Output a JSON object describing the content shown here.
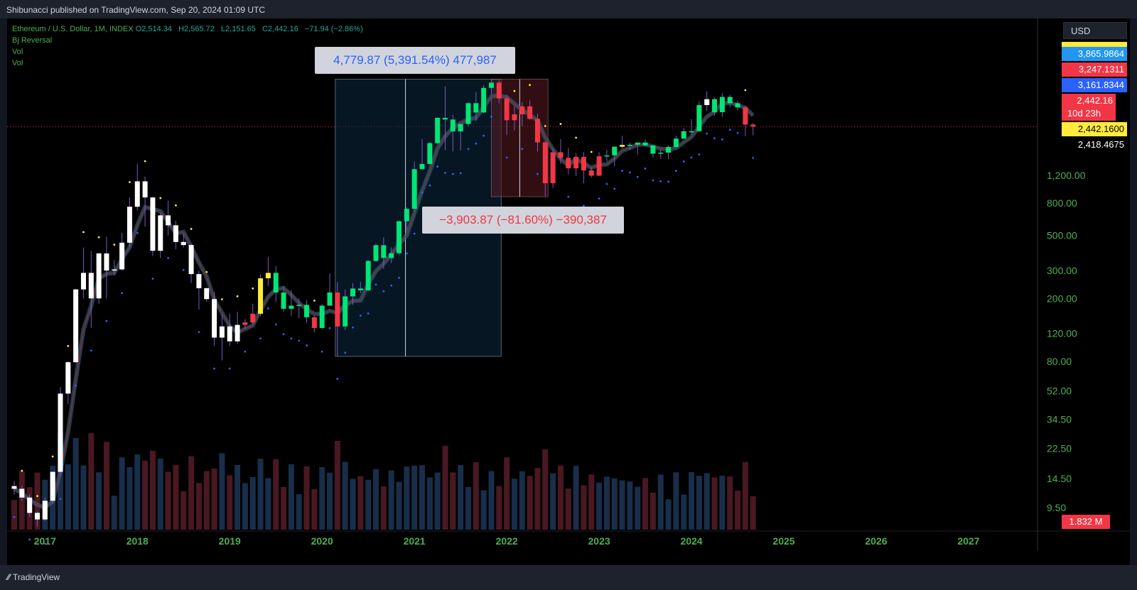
{
  "header": {
    "published": "Shibunacci published on TradingView.com, Sep 20, 2024 01:09 UTC"
  },
  "legend": {
    "symbol": "Ethereum / U.S. Dollar, 1M, INDEX",
    "open_key": "O",
    "open": "2,514.34",
    "high_key": "H",
    "high": "2,565.72",
    "low_key": "L",
    "low": "2,151.65",
    "close_key": "C",
    "close": "2,442.16",
    "change": "−71.94 (−2.86%)",
    "indicators": [
      "Bj Reversal",
      "Vol",
      "Vol"
    ]
  },
  "currency": "USD",
  "price_tags": [
    {
      "label": "3,865.9864",
      "bg": "#2196f3",
      "fg": "#ffffff"
    },
    {
      "label": "3,247.1311",
      "bg": "#f23645",
      "fg": "#ffffff"
    },
    {
      "label": "3,161.8344",
      "bg": "#2962ff",
      "fg": "#ffffff"
    },
    {
      "label": "2,442.16",
      "sub": "10d 23h",
      "bg": "#f23645",
      "fg": "#ffffff"
    },
    {
      "label": "2,442.1600",
      "bg": "#ffeb3b",
      "fg": "#000000"
    },
    {
      "label": "2,418.4675",
      "bg": "#000000",
      "fg": "#ffffff"
    }
  ],
  "volume_tag": {
    "label": "1.832 M",
    "bg": "#f23645",
    "fg": "#ffffff"
  },
  "measurements": [
    {
      "label": "4,779.87 (5,391.54%) 477,987",
      "color": "#2962ff"
    },
    {
      "label": "−3,903.87 (−81.60%) −390,387",
      "color": "#f23645"
    }
  ],
  "colors": {
    "up": "#00e676",
    "down": "#f23645",
    "white": "#ffffff",
    "yellow": "#ffeb3b",
    "accent_green": "#4caf50",
    "band": "#1f6f8b"
  },
  "footer": {
    "brand": "TradingView"
  },
  "chart_data": {
    "type": "candlestick",
    "scale": "log",
    "y_axis_ticks": [
      "1,200.00",
      "800.00",
      "500.00",
      "300.00",
      "200.00",
      "120.00",
      "80.00",
      "52.00",
      "34.50",
      "22.50",
      "14.50",
      "9.50"
    ],
    "y_axis_values": [
      1200,
      800,
      500,
      300,
      200,
      120,
      80,
      52,
      34.5,
      22.5,
      14.5,
      9.5
    ],
    "x_axis_ticks": [
      "2017",
      "2018",
      "2019",
      "2020",
      "2021",
      "2022",
      "2023",
      "2024",
      "2025",
      "2026",
      "2027"
    ],
    "x_axis_range": [
      "2016-09",
      "2027-06"
    ],
    "series": [
      {
        "x": "2016-09",
        "o": 13,
        "h": 14,
        "l": 11.5,
        "c": 12.5,
        "col": "white"
      },
      {
        "x": "2016-10",
        "o": 12.5,
        "h": 13,
        "l": 10.5,
        "c": 11,
        "col": "white"
      },
      {
        "x": "2016-11",
        "o": 11,
        "h": 11.5,
        "l": 8.3,
        "c": 8.8,
        "col": "white"
      },
      {
        "x": "2016-12",
        "o": 8.8,
        "h": 9,
        "l": 7.2,
        "c": 8,
        "col": "white"
      },
      {
        "x": "2017-01",
        "o": 8,
        "h": 11,
        "l": 7.8,
        "c": 10.5,
        "col": "white"
      },
      {
        "x": "2017-02",
        "o": 10.5,
        "h": 16,
        "l": 10,
        "c": 16,
        "col": "white"
      },
      {
        "x": "2017-03",
        "o": 16,
        "h": 55,
        "l": 15,
        "c": 50,
        "col": "white"
      },
      {
        "x": "2017-04",
        "o": 50,
        "h": 80,
        "l": 43,
        "c": 79,
        "col": "white"
      },
      {
        "x": "2017-05",
        "o": 79,
        "h": 230,
        "l": 78,
        "c": 228,
        "col": "white"
      },
      {
        "x": "2017-06",
        "o": 228,
        "h": 420,
        "l": 200,
        "c": 290,
        "col": "white"
      },
      {
        "x": "2017-07",
        "o": 290,
        "h": 400,
        "l": 130,
        "c": 200,
        "col": "white"
      },
      {
        "x": "2017-08",
        "o": 200,
        "h": 390,
        "l": 185,
        "c": 385,
        "col": "white"
      },
      {
        "x": "2017-09",
        "o": 385,
        "h": 490,
        "l": 200,
        "c": 300,
        "col": "white"
      },
      {
        "x": "2017-10",
        "o": 300,
        "h": 350,
        "l": 280,
        "c": 305,
        "col": "white"
      },
      {
        "x": "2017-11",
        "o": 305,
        "h": 520,
        "l": 300,
        "c": 450,
        "col": "white"
      },
      {
        "x": "2017-12",
        "o": 450,
        "h": 870,
        "l": 420,
        "c": 760,
        "col": "white"
      },
      {
        "x": "2018-01",
        "o": 760,
        "h": 1420,
        "l": 720,
        "c": 1100,
        "col": "white"
      },
      {
        "x": "2018-02",
        "o": 1100,
        "h": 1180,
        "l": 570,
        "c": 870,
        "col": "white"
      },
      {
        "x": "2018-03",
        "o": 870,
        "h": 880,
        "l": 370,
        "c": 400,
        "col": "white"
      },
      {
        "x": "2018-04",
        "o": 400,
        "h": 690,
        "l": 360,
        "c": 670,
        "col": "white"
      },
      {
        "x": "2018-05",
        "o": 670,
        "h": 830,
        "l": 500,
        "c": 580,
        "col": "white"
      },
      {
        "x": "2018-06",
        "o": 580,
        "h": 620,
        "l": 410,
        "c": 455,
        "col": "white"
      },
      {
        "x": "2018-07",
        "o": 455,
        "h": 515,
        "l": 420,
        "c": 435,
        "col": "white"
      },
      {
        "x": "2018-08",
        "o": 435,
        "h": 440,
        "l": 250,
        "c": 285,
        "col": "white"
      },
      {
        "x": "2018-09",
        "o": 285,
        "h": 300,
        "l": 170,
        "c": 232,
        "col": "white"
      },
      {
        "x": "2018-10",
        "o": 232,
        "h": 235,
        "l": 190,
        "c": 198,
        "col": "white"
      },
      {
        "x": "2018-11",
        "o": 198,
        "h": 220,
        "l": 100,
        "c": 113,
        "col": "white"
      },
      {
        "x": "2018-12",
        "o": 113,
        "h": 158,
        "l": 81,
        "c": 133,
        "col": "white"
      },
      {
        "x": "2019-01",
        "o": 133,
        "h": 160,
        "l": 100,
        "c": 107,
        "col": "white"
      },
      {
        "x": "2019-02",
        "o": 107,
        "h": 165,
        "l": 103,
        "c": 136,
        "col": "white"
      },
      {
        "x": "2019-03",
        "o": 136,
        "h": 148,
        "l": 128,
        "c": 141,
        "col": "red"
      },
      {
        "x": "2019-04",
        "o": 141,
        "h": 185,
        "l": 137,
        "c": 160,
        "col": "red"
      },
      {
        "x": "2019-05",
        "o": 160,
        "h": 285,
        "l": 155,
        "c": 268,
        "col": "yellow"
      },
      {
        "x": "2019-06",
        "o": 268,
        "h": 365,
        "l": 240,
        "c": 290,
        "col": "yellow"
      },
      {
        "x": "2019-07",
        "o": 290,
        "h": 320,
        "l": 190,
        "c": 218,
        "col": "green"
      },
      {
        "x": "2019-08",
        "o": 218,
        "h": 240,
        "l": 165,
        "c": 172,
        "col": "green"
      },
      {
        "x": "2019-09",
        "o": 172,
        "h": 225,
        "l": 155,
        "c": 180,
        "col": "green"
      },
      {
        "x": "2019-10",
        "o": 180,
        "h": 200,
        "l": 150,
        "c": 182,
        "col": "green"
      },
      {
        "x": "2019-11",
        "o": 182,
        "h": 195,
        "l": 140,
        "c": 152,
        "col": "green"
      },
      {
        "x": "2019-12",
        "o": 152,
        "h": 155,
        "l": 122,
        "c": 130,
        "col": "red"
      },
      {
        "x": "2020-01",
        "o": 130,
        "h": 185,
        "l": 128,
        "c": 180,
        "col": "green"
      },
      {
        "x": "2020-02",
        "o": 180,
        "h": 288,
        "l": 180,
        "c": 218,
        "col": "green"
      },
      {
        "x": "2020-03",
        "o": 218,
        "h": 253,
        "l": 86,
        "c": 133,
        "col": "red"
      },
      {
        "x": "2020-04",
        "o": 133,
        "h": 228,
        "l": 126,
        "c": 206,
        "col": "green"
      },
      {
        "x": "2020-05",
        "o": 206,
        "h": 250,
        "l": 182,
        "c": 231,
        "col": "green"
      },
      {
        "x": "2020-06",
        "o": 231,
        "h": 254,
        "l": 216,
        "c": 225,
        "col": "green"
      },
      {
        "x": "2020-07",
        "o": 225,
        "h": 349,
        "l": 223,
        "c": 345,
        "col": "green"
      },
      {
        "x": "2020-08",
        "o": 345,
        "h": 445,
        "l": 340,
        "c": 434,
        "col": "green"
      },
      {
        "x": "2020-09",
        "o": 434,
        "h": 488,
        "l": 308,
        "c": 360,
        "col": "green"
      },
      {
        "x": "2020-10",
        "o": 360,
        "h": 420,
        "l": 335,
        "c": 386,
        "col": "green"
      },
      {
        "x": "2020-11",
        "o": 386,
        "h": 622,
        "l": 375,
        "c": 615,
        "col": "green"
      },
      {
        "x": "2020-12",
        "o": 615,
        "h": 755,
        "l": 535,
        "c": 737,
        "col": "green"
      },
      {
        "x": "2021-01",
        "o": 737,
        "h": 1470,
        "l": 714,
        "c": 1314,
        "col": "green"
      },
      {
        "x": "2021-02",
        "o": 1314,
        "h": 2040,
        "l": 1300,
        "c": 1416,
        "col": "green"
      },
      {
        "x": "2021-03",
        "o": 1416,
        "h": 1943,
        "l": 1440,
        "c": 1919,
        "col": "green"
      },
      {
        "x": "2021-04",
        "o": 1919,
        "h": 2797,
        "l": 1895,
        "c": 2773,
        "col": "green"
      },
      {
        "x": "2021-05",
        "o": 2773,
        "h": 4380,
        "l": 1730,
        "c": 2707,
        "col": "green"
      },
      {
        "x": "2021-06",
        "o": 2707,
        "h": 2890,
        "l": 1700,
        "c": 2275,
        "col": "green"
      },
      {
        "x": "2021-07",
        "o": 2275,
        "h": 2550,
        "l": 1720,
        "c": 2534,
        "col": "green"
      },
      {
        "x": "2021-08",
        "o": 2534,
        "h": 3470,
        "l": 2450,
        "c": 3433,
        "col": "green"
      },
      {
        "x": "2021-09",
        "o": 3433,
        "h": 4030,
        "l": 2650,
        "c": 3000,
        "col": "green"
      },
      {
        "x": "2021-10",
        "o": 3000,
        "h": 4460,
        "l": 2970,
        "c": 4290,
        "col": "green"
      },
      {
        "x": "2021-11",
        "o": 4290,
        "h": 4870,
        "l": 3920,
        "c": 4630,
        "col": "green"
      },
      {
        "x": "2021-12",
        "o": 4630,
        "h": 4780,
        "l": 3420,
        "c": 3680,
        "col": "red"
      },
      {
        "x": "2022-01",
        "o": 3680,
        "h": 3880,
        "l": 2160,
        "c": 2680,
        "col": "red"
      },
      {
        "x": "2022-02",
        "o": 2680,
        "h": 3280,
        "l": 2310,
        "c": 2920,
        "col": "red"
      },
      {
        "x": "2022-03",
        "o": 2920,
        "h": 3480,
        "l": 2450,
        "c": 3280,
        "col": "red"
      },
      {
        "x": "2022-04",
        "o": 3280,
        "h": 3580,
        "l": 2700,
        "c": 2730,
        "col": "red"
      },
      {
        "x": "2022-05",
        "o": 2730,
        "h": 2950,
        "l": 1700,
        "c": 1940,
        "col": "red"
      },
      {
        "x": "2022-06",
        "o": 1940,
        "h": 1970,
        "l": 880,
        "c": 1070,
        "col": "red"
      },
      {
        "x": "2022-07",
        "o": 1070,
        "h": 1780,
        "l": 1000,
        "c": 1680,
        "col": "red"
      },
      {
        "x": "2022-08",
        "o": 1680,
        "h": 2030,
        "l": 1420,
        "c": 1550,
        "col": "red"
      },
      {
        "x": "2022-09",
        "o": 1550,
        "h": 1790,
        "l": 1220,
        "c": 1330,
        "col": "red"
      },
      {
        "x": "2022-10",
        "o": 1330,
        "h": 1660,
        "l": 1190,
        "c": 1570,
        "col": "red"
      },
      {
        "x": "2022-11",
        "o": 1570,
        "h": 1680,
        "l": 1070,
        "c": 1290,
        "col": "red"
      },
      {
        "x": "2022-12",
        "o": 1290,
        "h": 1350,
        "l": 1160,
        "c": 1195,
        "col": "red"
      },
      {
        "x": "2023-01",
        "o": 1195,
        "h": 1680,
        "l": 1190,
        "c": 1585,
        "col": "red"
      },
      {
        "x": "2023-02",
        "o": 1585,
        "h": 1740,
        "l": 1470,
        "c": 1605,
        "col": "green"
      },
      {
        "x": "2023-03",
        "o": 1605,
        "h": 1850,
        "l": 1370,
        "c": 1820,
        "col": "green"
      },
      {
        "x": "2023-04",
        "o": 1820,
        "h": 2140,
        "l": 1780,
        "c": 1870,
        "col": "yellow"
      },
      {
        "x": "2023-05",
        "o": 1870,
        "h": 1930,
        "l": 1740,
        "c": 1874,
        "col": "green"
      },
      {
        "x": "2023-06",
        "o": 1874,
        "h": 1930,
        "l": 1630,
        "c": 1934,
        "col": "green"
      },
      {
        "x": "2023-07",
        "o": 1934,
        "h": 2030,
        "l": 1840,
        "c": 1856,
        "col": "green"
      },
      {
        "x": "2023-08",
        "o": 1856,
        "h": 1870,
        "l": 1550,
        "c": 1645,
        "col": "green"
      },
      {
        "x": "2023-09",
        "o": 1645,
        "h": 1750,
        "l": 1530,
        "c": 1671,
        "col": "green"
      },
      {
        "x": "2023-10",
        "o": 1671,
        "h": 1860,
        "l": 1520,
        "c": 1814,
        "col": "green"
      },
      {
        "x": "2023-11",
        "o": 1814,
        "h": 2140,
        "l": 1780,
        "c": 2050,
        "col": "green"
      },
      {
        "x": "2023-12",
        "o": 2050,
        "h": 2400,
        "l": 2040,
        "c": 2282,
        "col": "green"
      },
      {
        "x": "2024-01",
        "o": 2282,
        "h": 2720,
        "l": 2160,
        "c": 2283,
        "col": "green"
      },
      {
        "x": "2024-02",
        "o": 2283,
        "h": 3520,
        "l": 2260,
        "c": 3340,
        "col": "green"
      },
      {
        "x": "2024-03",
        "o": 3340,
        "h": 4090,
        "l": 3060,
        "c": 3640,
        "col": "white"
      },
      {
        "x": "2024-04",
        "o": 3640,
        "h": 3730,
        "l": 2860,
        "c": 3010,
        "col": "green"
      },
      {
        "x": "2024-05",
        "o": 3010,
        "h": 3980,
        "l": 2810,
        "c": 3760,
        "col": "green"
      },
      {
        "x": "2024-06",
        "o": 3760,
        "h": 3880,
        "l": 3240,
        "c": 3430,
        "col": "green"
      },
      {
        "x": "2024-07",
        "o": 3430,
        "h": 3560,
        "l": 3090,
        "c": 3230,
        "col": "green"
      },
      {
        "x": "2024-08",
        "o": 3230,
        "h": 3320,
        "l": 2120,
        "c": 2514,
        "col": "red"
      },
      {
        "x": "2024-09",
        "o": 2514,
        "h": 2566,
        "l": 2152,
        "c": 2442,
        "col": "red"
      }
    ]
  }
}
